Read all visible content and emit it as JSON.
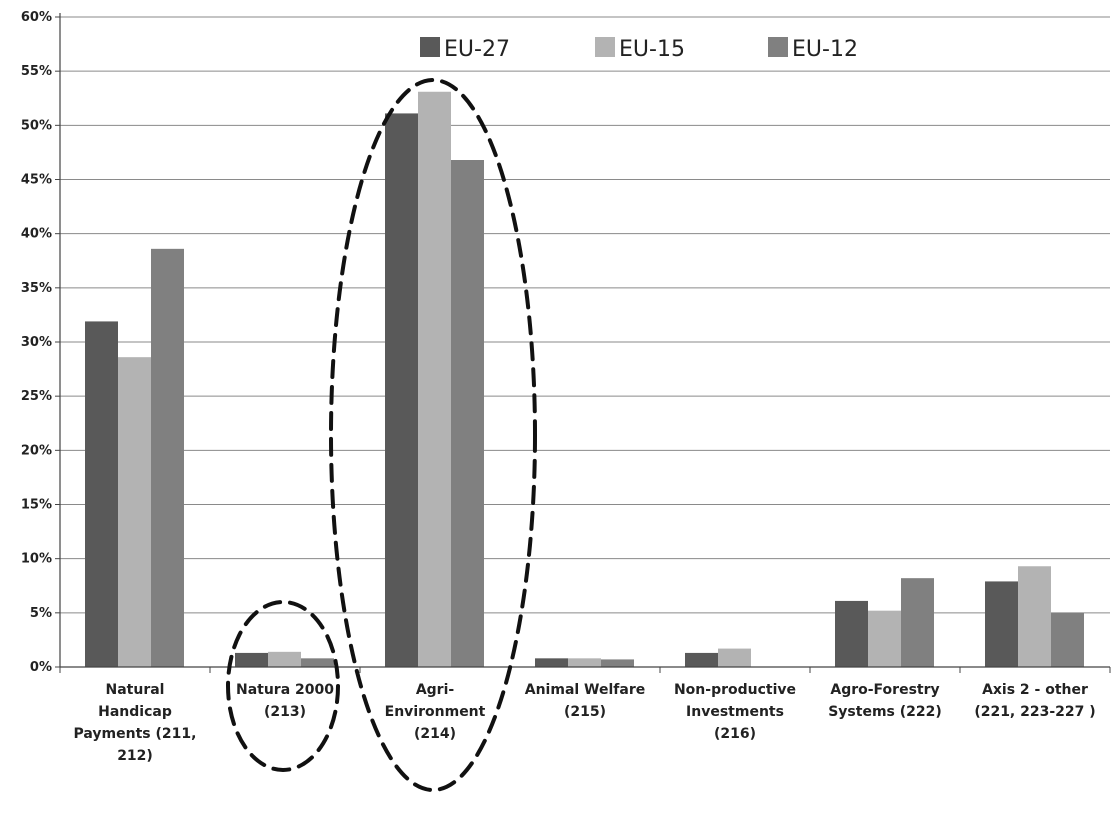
{
  "chart_data": {
    "type": "bar",
    "categories": [
      [
        "Natural",
        "Handicap",
        "Payments (211,",
        "212)"
      ],
      [
        "Natura 2000",
        "(213)"
      ],
      [
        "Agri-",
        "Environment",
        "(214)"
      ],
      [
        "Animal Welfare",
        "(215)"
      ],
      [
        "Non-productive",
        "Investments",
        "(216)"
      ],
      [
        "Agro-Forestry",
        "Systems (222)"
      ],
      [
        "Axis 2 - other",
        "(221, 223-227 )"
      ]
    ],
    "series": [
      {
        "name": "EU-27",
        "color": "#595959",
        "values": [
          31.9,
          1.3,
          51.1,
          0.8,
          1.3,
          6.1,
          7.9
        ]
      },
      {
        "name": "EU-15",
        "color": "#b3b3b3",
        "values": [
          28.6,
          1.4,
          53.1,
          0.8,
          1.7,
          5.2,
          9.3
        ]
      },
      {
        "name": "EU-12",
        "color": "#808080",
        "values": [
          38.6,
          0.8,
          46.8,
          0.7,
          0.0,
          8.2,
          5.0
        ]
      }
    ],
    "yticks": [
      "0%",
      "5%",
      "10%",
      "15%",
      "20%",
      "25%",
      "30%",
      "35%",
      "40%",
      "45%",
      "50%",
      "55%",
      "60%"
    ],
    "ylim": [
      0,
      60
    ],
    "grid": true,
    "legend_position": "top-center",
    "annotations": [
      {
        "type": "dashed-ellipse",
        "category_index": 1
      },
      {
        "type": "dashed-ellipse",
        "category_index": 2
      }
    ]
  }
}
